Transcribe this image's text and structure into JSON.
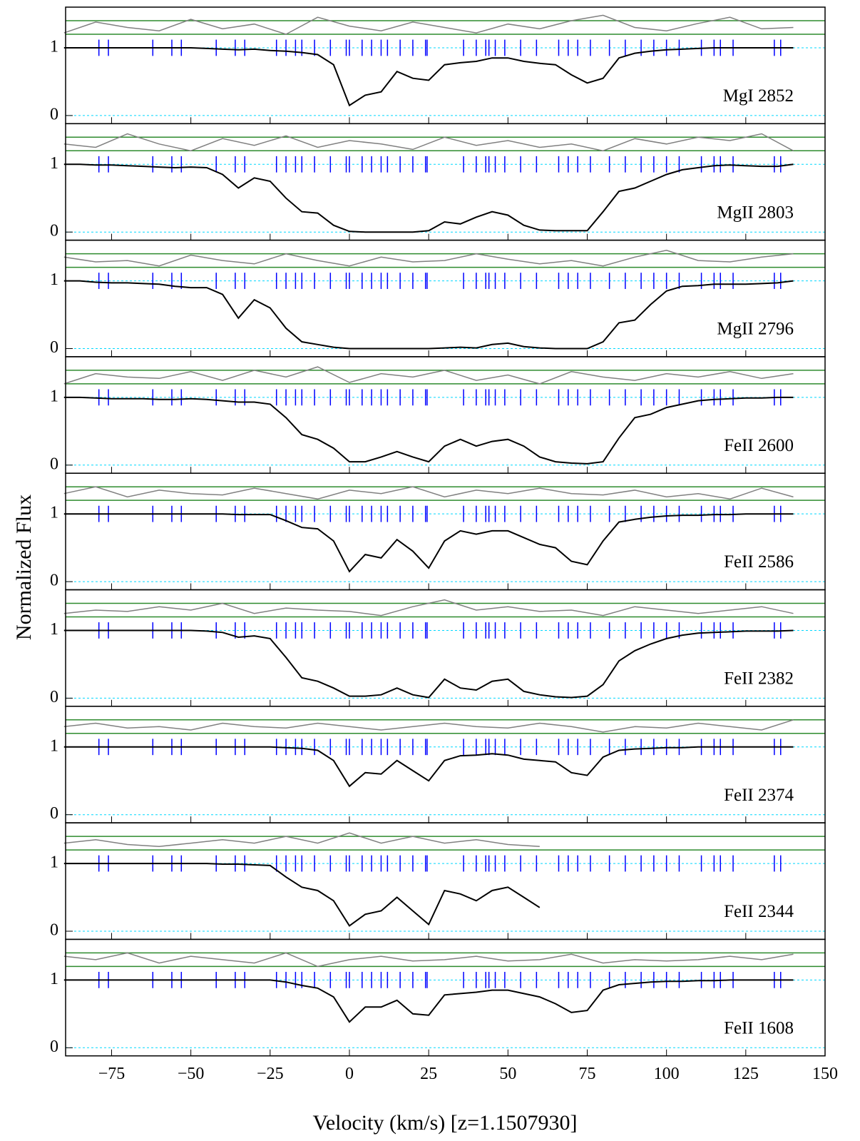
{
  "chart_data": {
    "type": "stacked-line",
    "xlabel": "Velocity (km/s) [z=1.1507930]",
    "ylabel": "Normalized Flux",
    "xlim": [
      -89.5,
      150
    ],
    "xticks": [
      {
        "value": -75,
        "label": "−75"
      },
      {
        "value": -50,
        "label": "−50"
      },
      {
        "value": -25,
        "label": "−25"
      },
      0,
      25,
      50,
      75,
      100,
      125,
      150
    ],
    "ylim": [
      -0.12,
      1.6
    ],
    "yticks": [
      0,
      1
    ],
    "residual_band": [
      1.2,
      1.4
    ],
    "flux_color": "#000000",
    "residual_color": "#808080",
    "component_color": "#0000ff",
    "band_color": "#2e8b2e",
    "grid_color": "#00d8ff",
    "components": [
      -79,
      -76,
      -62,
      -56,
      -53,
      -42,
      -36,
      -33,
      -23,
      -20,
      -17,
      -15,
      -11,
      -6,
      -1,
      0,
      4,
      7,
      10,
      12,
      16,
      20,
      24,
      24.5,
      36,
      40,
      43,
      44,
      46,
      49,
      54,
      59,
      66,
      69,
      72,
      76,
      82,
      87,
      92,
      96,
      100,
      104,
      111,
      115,
      117,
      121,
      134,
      136
    ],
    "x": [
      -90,
      -85,
      -80,
      -75,
      -70,
      -65,
      -60,
      -55,
      -50,
      -45,
      -40,
      -35,
      -30,
      -25,
      -20,
      -15,
      -10,
      -5,
      0,
      5,
      10,
      15,
      20,
      25,
      30,
      35,
      40,
      45,
      50,
      55,
      60,
      65,
      70,
      75,
      80,
      85,
      90,
      95,
      100,
      105,
      110,
      115,
      120,
      125,
      130,
      135,
      140
    ],
    "residual_x": [
      -90,
      -80,
      -70,
      -60,
      -50,
      -40,
      -30,
      -20,
      -10,
      0,
      10,
      20,
      30,
      40,
      50,
      60,
      70,
      80,
      90,
      100,
      110,
      120,
      130,
      140
    ],
    "panels": [
      {
        "label": "MgI 2852",
        "flux": [
          1,
          1,
          1,
          1,
          1,
          1,
          1,
          1,
          1,
          0.99,
          0.98,
          0.97,
          0.98,
          0.96,
          0.95,
          0.93,
          0.9,
          0.75,
          0.15,
          0.3,
          0.35,
          0.65,
          0.55,
          0.52,
          0.75,
          0.78,
          0.8,
          0.85,
          0.85,
          0.8,
          0.77,
          0.75,
          0.6,
          0.48,
          0.55,
          0.85,
          0.92,
          0.95,
          0.97,
          0.98,
          0.99,
          1,
          1,
          1,
          1,
          1,
          1
        ],
        "residuals": [
          1.22,
          1.38,
          1.3,
          1.25,
          1.42,
          1.28,
          1.35,
          1.2,
          1.45,
          1.32,
          1.25,
          1.38,
          1.3,
          1.22,
          1.35,
          1.28,
          1.4,
          1.48,
          1.3,
          1.25,
          1.36,
          1.45,
          1.28,
          1.3
        ]
      },
      {
        "label": "MgII 2803",
        "flux": [
          1,
          1,
          0.99,
          0.99,
          0.98,
          0.97,
          0.96,
          0.95,
          0.96,
          0.95,
          0.85,
          0.65,
          0.8,
          0.75,
          0.5,
          0.3,
          0.28,
          0.1,
          0.01,
          0,
          0,
          0,
          0,
          0.02,
          0.15,
          0.12,
          0.22,
          0.3,
          0.25,
          0.1,
          0.03,
          0.02,
          0.02,
          0.02,
          0.3,
          0.6,
          0.65,
          0.75,
          0.85,
          0.92,
          0.95,
          0.98,
          0.99,
          0.98,
          0.97,
          0.97,
          1
        ],
        "residuals": [
          1.3,
          1.25,
          1.45,
          1.3,
          1.2,
          1.38,
          1.28,
          1.42,
          1.25,
          1.35,
          1.3,
          1.22,
          1.4,
          1.28,
          1.35,
          1.25,
          1.3,
          1.2,
          1.38,
          1.3,
          1.4,
          1.35,
          1.45,
          1.2
        ]
      },
      {
        "label": "MgII 2796",
        "flux": [
          1,
          1,
          0.98,
          0.97,
          0.97,
          0.96,
          0.95,
          0.92,
          0.9,
          0.9,
          0.8,
          0.45,
          0.72,
          0.6,
          0.3,
          0.1,
          0.06,
          0.02,
          0,
          0,
          0,
          0,
          0,
          0,
          0.01,
          0.02,
          0.01,
          0.06,
          0.08,
          0.03,
          0.01,
          0,
          0,
          0,
          0.1,
          0.38,
          0.42,
          0.65,
          0.85,
          0.92,
          0.93,
          0.95,
          0.95,
          0.95,
          0.96,
          0.97,
          1
        ],
        "residuals": [
          1.35,
          1.28,
          1.3,
          1.22,
          1.38,
          1.3,
          1.25,
          1.4,
          1.3,
          1.22,
          1.35,
          1.28,
          1.3,
          1.4,
          1.32,
          1.25,
          1.3,
          1.22,
          1.35,
          1.45,
          1.3,
          1.28,
          1.35,
          1.4
        ]
      },
      {
        "label": "FeII 2600",
        "flux": [
          1,
          1,
          0.99,
          0.98,
          0.98,
          0.98,
          0.97,
          0.97,
          0.98,
          0.97,
          0.95,
          0.93,
          0.93,
          0.9,
          0.7,
          0.45,
          0.38,
          0.25,
          0.05,
          0.05,
          0.12,
          0.2,
          0.12,
          0.05,
          0.28,
          0.38,
          0.28,
          0.35,
          0.38,
          0.28,
          0.12,
          0.05,
          0.03,
          0.02,
          0.05,
          0.4,
          0.7,
          0.75,
          0.85,
          0.9,
          0.95,
          0.97,
          0.98,
          0.99,
          0.99,
          1,
          1
        ],
        "residuals": [
          1.2,
          1.35,
          1.3,
          1.28,
          1.38,
          1.25,
          1.4,
          1.3,
          1.45,
          1.22,
          1.35,
          1.3,
          1.4,
          1.25,
          1.33,
          1.2,
          1.38,
          1.3,
          1.25,
          1.35,
          1.3,
          1.38,
          1.28,
          1.35
        ]
      },
      {
        "label": "FeII 2586",
        "flux": [
          1,
          1,
          1,
          1,
          1,
          1,
          1,
          1,
          1,
          1,
          1,
          0.99,
          0.99,
          0.99,
          0.9,
          0.8,
          0.78,
          0.6,
          0.15,
          0.4,
          0.35,
          0.62,
          0.45,
          0.2,
          0.6,
          0.75,
          0.7,
          0.75,
          0.75,
          0.65,
          0.55,
          0.5,
          0.3,
          0.25,
          0.6,
          0.88,
          0.92,
          0.95,
          0.97,
          0.98,
          0.98,
          0.99,
          0.99,
          1,
          1,
          1,
          1
        ],
        "residuals": [
          1.3,
          1.4,
          1.25,
          1.35,
          1.3,
          1.28,
          1.38,
          1.3,
          1.22,
          1.35,
          1.3,
          1.4,
          1.25,
          1.35,
          1.3,
          1.38,
          1.3,
          1.28,
          1.35,
          1.25,
          1.3,
          1.22,
          1.38,
          1.25
        ]
      },
      {
        "label": "FeII 2382",
        "flux": [
          1,
          1,
          1,
          1,
          1,
          1,
          1,
          1,
          1,
          0.99,
          0.97,
          0.9,
          0.92,
          0.88,
          0.6,
          0.3,
          0.25,
          0.15,
          0.03,
          0.03,
          0.05,
          0.15,
          0.05,
          0.01,
          0.28,
          0.15,
          0.12,
          0.25,
          0.28,
          0.1,
          0.05,
          0.02,
          0.01,
          0.03,
          0.2,
          0.55,
          0.7,
          0.8,
          0.88,
          0.93,
          0.96,
          0.97,
          0.98,
          0.99,
          0.99,
          0.99,
          1
        ],
        "residuals": [
          1.25,
          1.3,
          1.28,
          1.35,
          1.3,
          1.4,
          1.25,
          1.33,
          1.3,
          1.28,
          1.22,
          1.35,
          1.45,
          1.3,
          1.35,
          1.28,
          1.3,
          1.22,
          1.35,
          1.3,
          1.25,
          1.3,
          1.35,
          1.25
        ]
      },
      {
        "label": "FeII 2374",
        "flux": [
          1,
          1,
          1,
          1,
          1,
          1,
          1,
          1,
          1,
          1,
          1,
          1,
          1,
          1,
          0.99,
          0.98,
          0.95,
          0.8,
          0.42,
          0.62,
          0.6,
          0.8,
          0.65,
          0.5,
          0.8,
          0.87,
          0.88,
          0.9,
          0.88,
          0.82,
          0.8,
          0.78,
          0.62,
          0.58,
          0.85,
          0.95,
          0.97,
          0.98,
          0.99,
          0.99,
          1,
          1,
          1,
          1,
          1,
          1,
          1
        ],
        "residuals": [
          1.3,
          1.35,
          1.28,
          1.3,
          1.25,
          1.35,
          1.3,
          1.28,
          1.35,
          1.3,
          1.25,
          1.3,
          1.35,
          1.3,
          1.28,
          1.35,
          1.3,
          1.22,
          1.3,
          1.28,
          1.35,
          1.3,
          1.25,
          1.4
        ]
      },
      {
        "label": "FeII 2344",
        "flux": [
          1,
          1,
          1,
          1,
          1,
          1,
          1,
          1,
          1,
          1,
          0.99,
          0.99,
          0.98,
          0.97,
          0.8,
          0.65,
          0.6,
          0.45,
          0.08,
          0.25,
          0.3,
          0.5,
          0.3,
          0.1,
          0.6,
          0.55,
          0.45,
          0.6,
          0.65,
          0.5,
          0.35,
          null,
          null,
          null,
          null,
          null,
          null,
          null,
          null,
          null,
          null,
          null,
          null,
          null,
          null,
          null,
          null
        ],
        "residuals": [
          1.3,
          1.35,
          1.28,
          1.25,
          1.3,
          1.35,
          1.3,
          1.4,
          1.3,
          1.45,
          1.3,
          1.4,
          1.3,
          1.35,
          1.28,
          1.25,
          null,
          null,
          null,
          null,
          null,
          null,
          null,
          null
        ]
      },
      {
        "label": "FeII 1608",
        "flux": [
          1,
          1,
          1,
          1,
          1,
          1,
          1,
          1,
          1,
          1,
          1,
          1,
          1,
          1,
          0.97,
          0.92,
          0.88,
          0.75,
          0.38,
          0.6,
          0.6,
          0.7,
          0.5,
          0.48,
          0.78,
          0.8,
          0.82,
          0.85,
          0.85,
          0.8,
          0.75,
          0.65,
          0.52,
          0.55,
          0.85,
          0.93,
          0.95,
          0.97,
          0.98,
          0.98,
          0.99,
          0.99,
          1,
          1,
          1,
          1,
          1
        ],
        "residuals": [
          1.35,
          1.3,
          1.4,
          1.25,
          1.35,
          1.3,
          1.25,
          1.4,
          1.2,
          1.3,
          1.35,
          1.28,
          1.3,
          1.35,
          1.28,
          1.3,
          1.38,
          1.25,
          1.3,
          1.28,
          1.3,
          1.35,
          1.3,
          1.38
        ]
      }
    ]
  }
}
